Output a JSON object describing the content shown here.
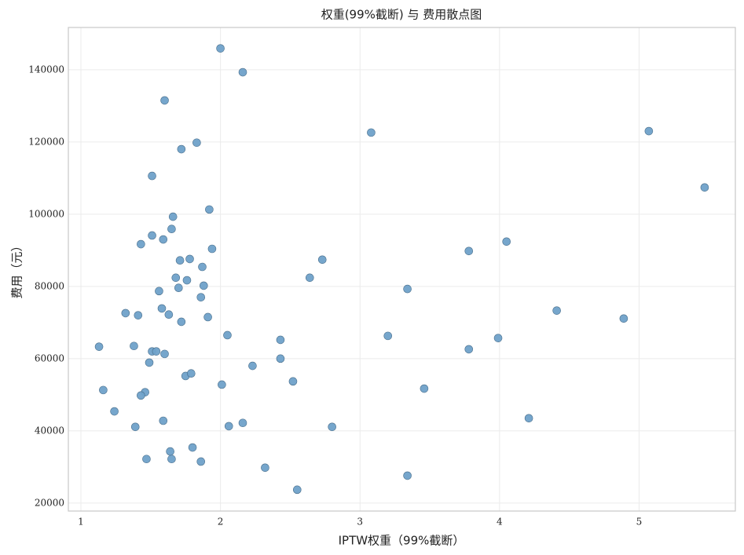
{
  "chart_data": {
    "type": "scatter",
    "title": "权重(99%截断) 与 费用散点图",
    "x_label": "IPTW权重（99%截断）",
    "y_label": "费用（元）",
    "color": "#6fa1c9",
    "edge_color": "#4a6f8c",
    "grid": true,
    "xlim": [
      0.91,
      5.69
    ],
    "ylim": [
      17800,
      151700
    ],
    "xticks": [
      1,
      2,
      3,
      4,
      5
    ],
    "yticks": [
      20000,
      40000,
      60000,
      80000,
      100000,
      120000,
      140000
    ],
    "x": [
      2.0,
      2.16,
      1.6,
      1.72,
      1.83,
      1.51,
      3.08,
      5.07,
      5.47,
      1.66,
      1.92,
      1.51,
      1.65,
      1.59,
      1.43,
      1.94,
      1.71,
      1.78,
      1.87,
      2.73,
      3.78,
      4.05,
      1.68,
      1.76,
      2.64,
      1.88,
      1.7,
      1.56,
      3.34,
      1.86,
      1.58,
      4.41,
      1.32,
      1.41,
      1.63,
      1.91,
      4.89,
      1.72,
      2.05,
      3.2,
      2.43,
      3.99,
      1.13,
      1.38,
      3.78,
      1.51,
      1.54,
      1.6,
      1.49,
      2.43,
      2.23,
      1.75,
      1.79,
      2.52,
      2.01,
      1.16,
      3.46,
      1.46,
      1.43,
      1.24,
      4.21,
      1.59,
      2.16,
      2.06,
      1.39,
      2.8,
      1.8,
      1.64,
      1.47,
      1.65,
      1.86,
      2.32,
      3.34,
      2.55
    ],
    "values": [
      145900,
      139300,
      131500,
      118000,
      119800,
      110600,
      122600,
      123000,
      107400,
      99300,
      101300,
      94100,
      95900,
      93000,
      91700,
      90400,
      87200,
      87600,
      85400,
      87400,
      89800,
      92400,
      82400,
      81700,
      82400,
      80200,
      79600,
      78700,
      79300,
      77000,
      73900,
      73300,
      72600,
      72000,
      72200,
      71500,
      71100,
      70200,
      66500,
      66300,
      65200,
      65700,
      63300,
      63500,
      62600,
      62000,
      62000,
      61300,
      58900,
      60000,
      58000,
      55200,
      55900,
      53700,
      52800,
      51300,
      51700,
      50700,
      49800,
      45400,
      43500,
      42800,
      42200,
      41300,
      41100,
      41100,
      35400,
      34300,
      32200,
      32200,
      31500,
      29800,
      27600,
      23700
    ]
  }
}
